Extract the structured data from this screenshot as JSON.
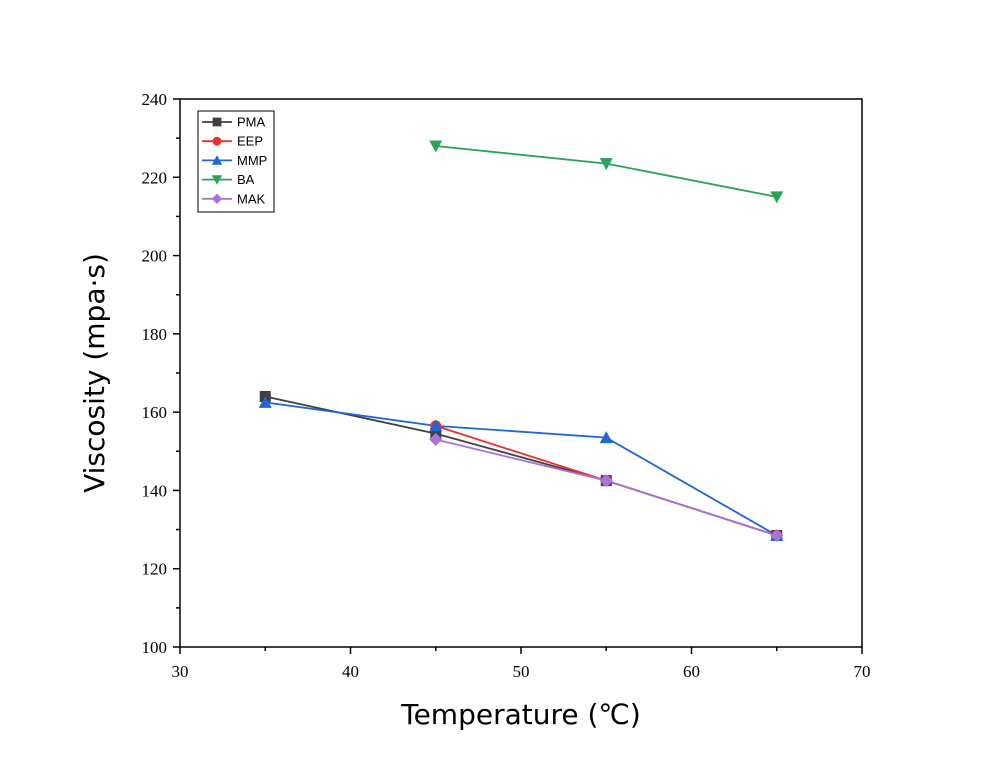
{
  "chart_data": {
    "type": "line",
    "xlabel": "Temperature (℃)",
    "ylabel": "Viscosity (mpa·s)",
    "xlim": [
      30,
      70
    ],
    "ylim": [
      100,
      240
    ],
    "xticks": [
      30,
      40,
      50,
      60,
      70
    ],
    "yticks": [
      100,
      120,
      140,
      160,
      180,
      200,
      220,
      240
    ],
    "grid": false,
    "legend_position": "top-left",
    "series": [
      {
        "name": "PMA",
        "color": "#404040",
        "marker": "square",
        "points": [
          [
            35,
            164
          ],
          [
            45,
            154.5
          ],
          [
            55,
            142.5
          ],
          [
            65,
            128.5
          ]
        ]
      },
      {
        "name": "EEP",
        "color": "#e8302f",
        "marker": "circle",
        "points": [
          [
            45,
            156.5
          ],
          [
            55,
            142.5
          ],
          [
            65,
            128.5
          ]
        ]
      },
      {
        "name": "MMP",
        "color": "#1f66d6",
        "marker": "triangle-up",
        "points": [
          [
            35,
            162.5
          ],
          [
            45,
            156.5
          ],
          [
            55,
            153.5
          ],
          [
            65,
            128.5
          ]
        ]
      },
      {
        "name": "BA",
        "color": "#2aa35a",
        "marker": "triangle-down",
        "points": [
          [
            45,
            228
          ],
          [
            55,
            223.5
          ],
          [
            65,
            215
          ]
        ]
      },
      {
        "name": "MAK",
        "color": "#a874db",
        "marker": "diamond",
        "points": [
          [
            45,
            153
          ],
          [
            55,
            142.5
          ],
          [
            65,
            128.5
          ]
        ]
      }
    ]
  }
}
